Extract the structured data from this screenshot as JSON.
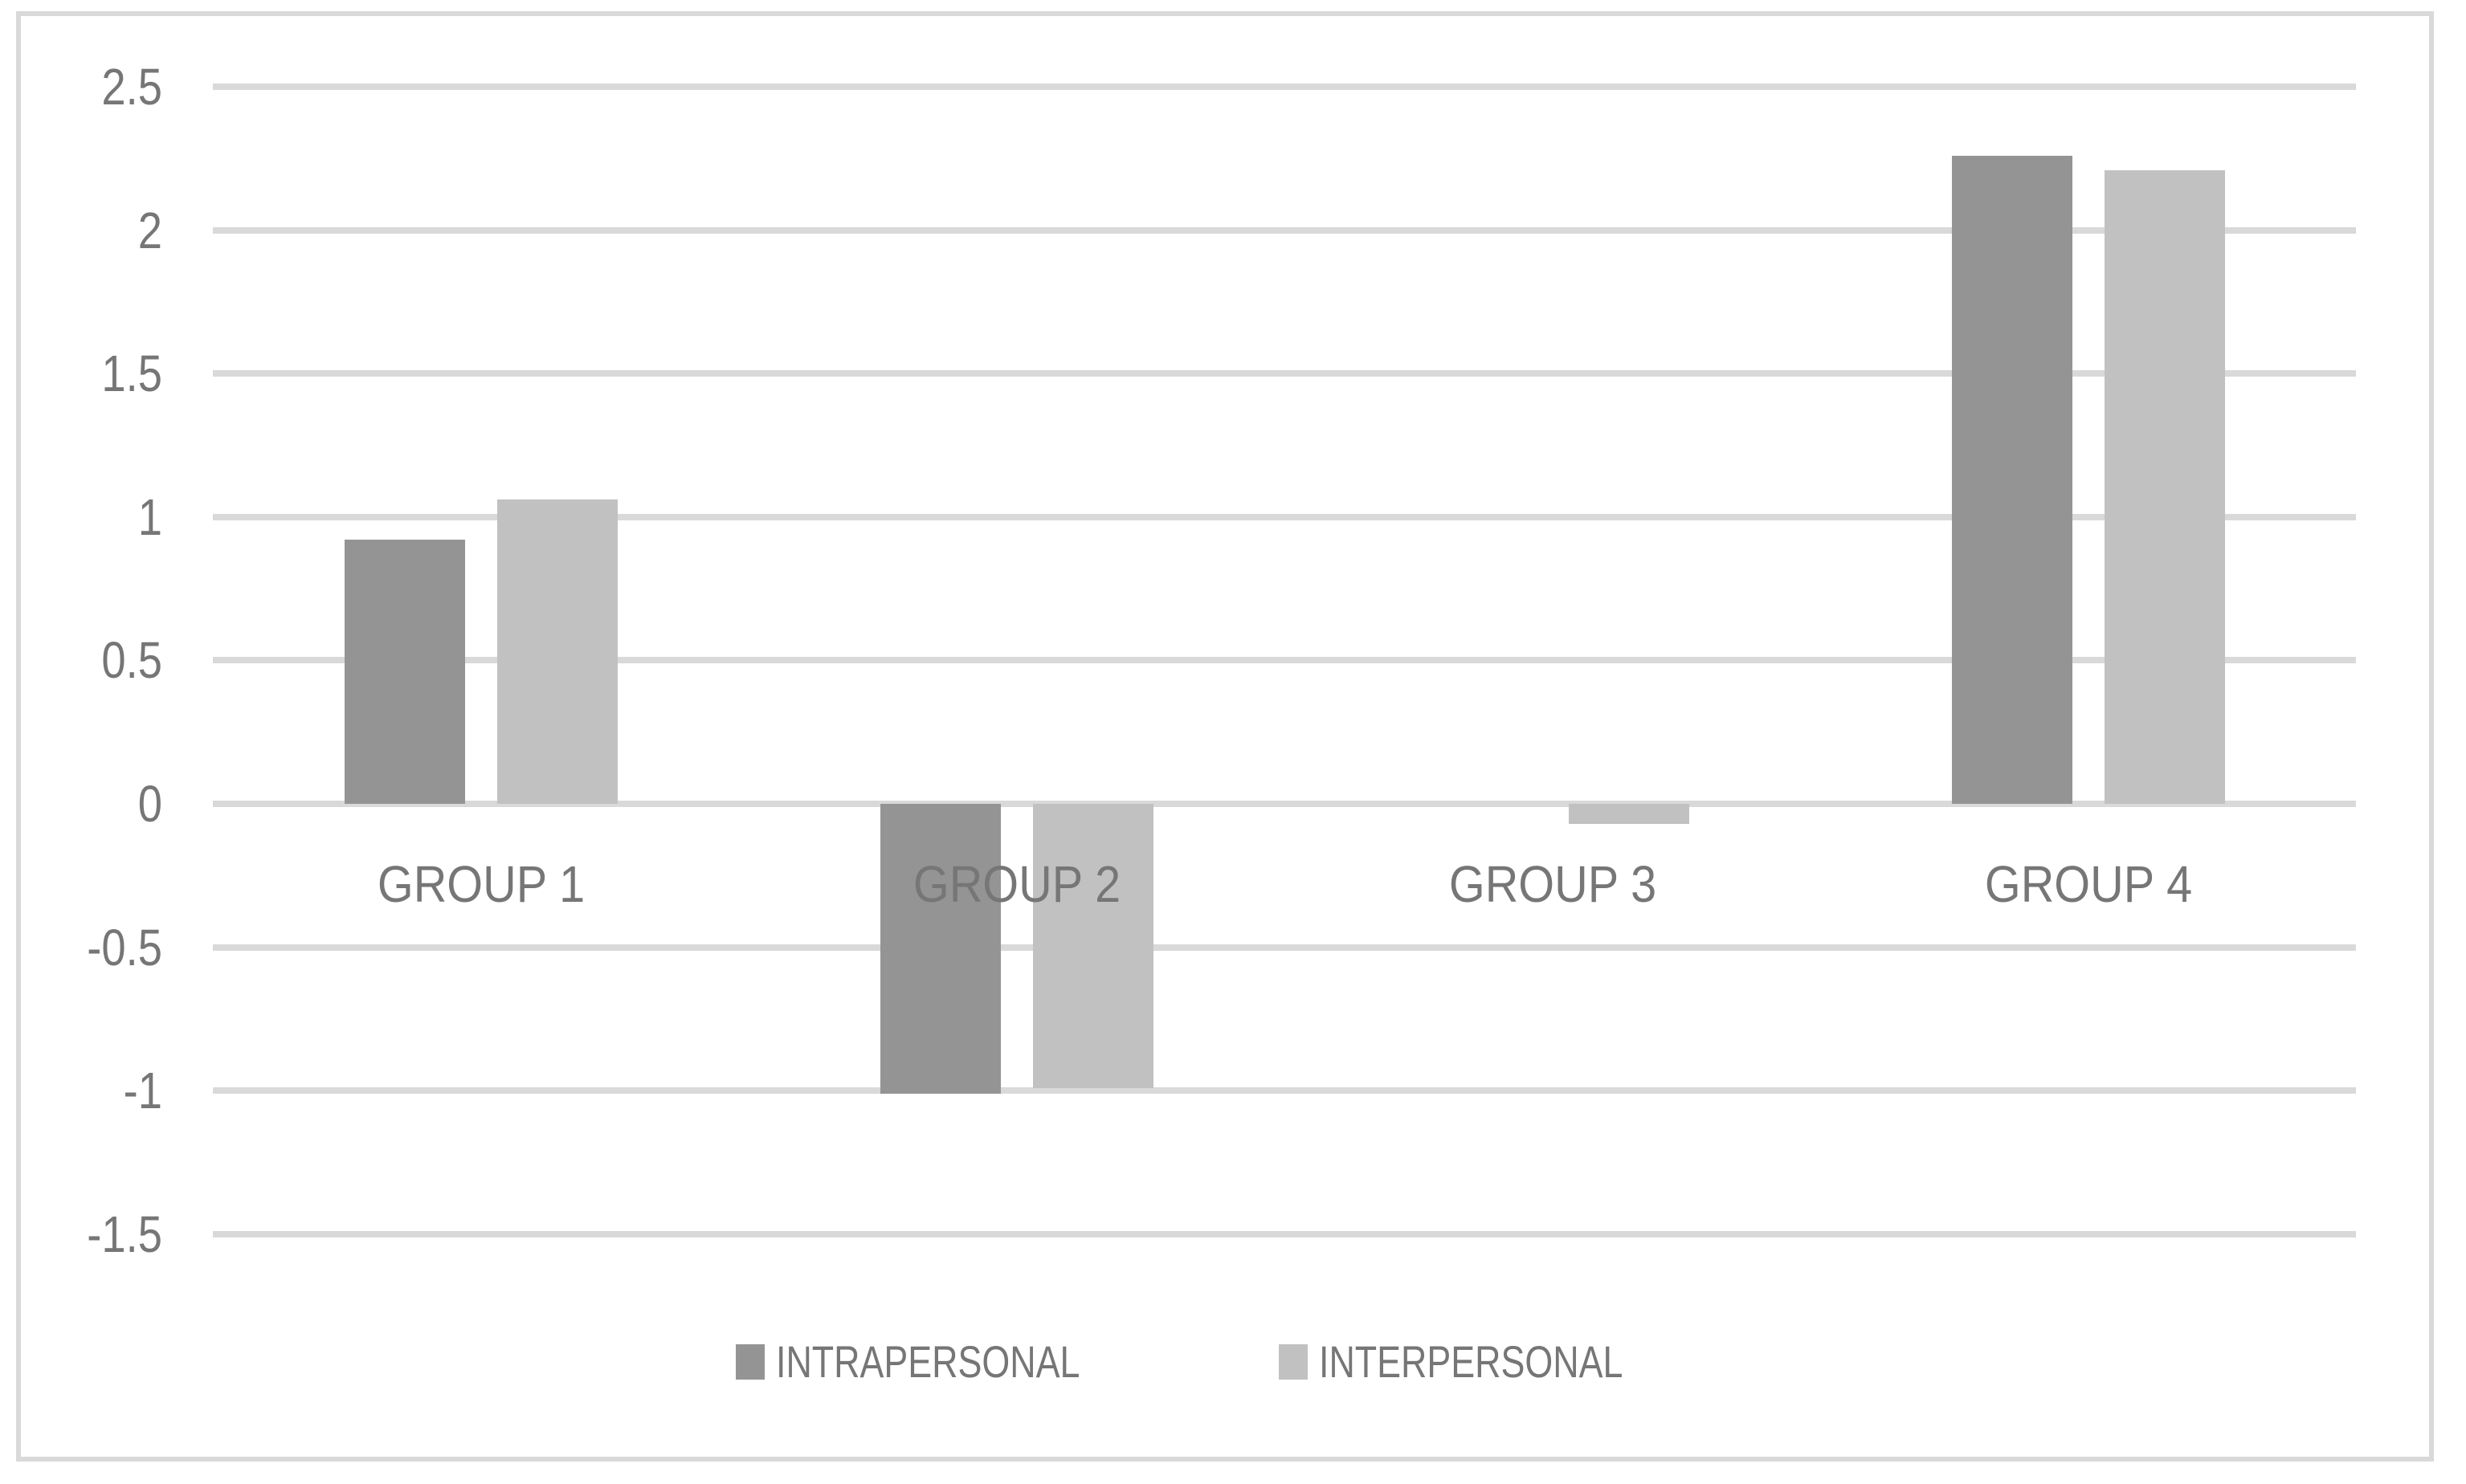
{
  "chart_data": {
    "type": "bar",
    "title": "",
    "xlabel": "",
    "ylabel": "",
    "categories": [
      "GROUP 1",
      "GROUP 2",
      "GROUP 3",
      "GROUP 4"
    ],
    "series": [
      {
        "name": "INTRAPERSONAL",
        "color": "#949494",
        "values": [
          0.92,
          -1.01,
          0,
          2.26
        ]
      },
      {
        "name": "INTERPERSONAL",
        "color": "#c1c1c1",
        "values": [
          1.06,
          -0.99,
          -0.07,
          2.21
        ]
      }
    ],
    "ylim": [
      -1.5,
      2.5
    ],
    "yticks": [
      2.5,
      2,
      1.5,
      1,
      0.5,
      0,
      -0.5,
      -1,
      -1.5
    ],
    "ytick_labels": [
      "2.5",
      "2",
      "1.5",
      "1",
      "0.5",
      "0",
      "-0.5",
      "-1",
      "-1.5"
    ],
    "grid": true,
    "legend_position": "bottom-center",
    "colors": {
      "gridline": "#d9d9d9",
      "text": "#767676",
      "frame_border": "#d9d9d9",
      "background": "#ffffff"
    }
  }
}
